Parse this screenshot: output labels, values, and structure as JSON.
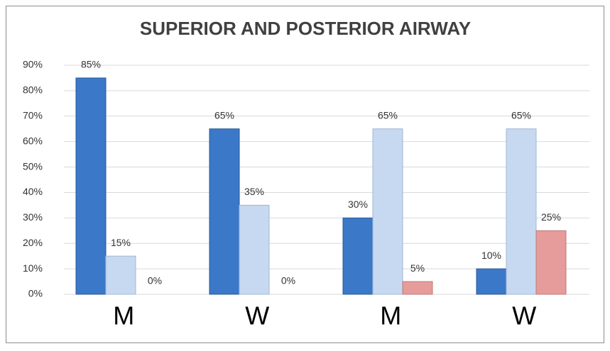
{
  "chart_data": {
    "type": "bar",
    "title": "SUPERIOR AND POSTERIOR AIRWAY",
    "categories": [
      "M",
      "W",
      "M",
      "W"
    ],
    "series": [
      {
        "color": "#3b78c8",
        "values": [
          85,
          65,
          30,
          10
        ],
        "value_labels": [
          "85%",
          "65%",
          "30%",
          "10%"
        ]
      },
      {
        "color": "#c6d9f1",
        "values": [
          15,
          35,
          65,
          65
        ],
        "value_labels": [
          "15%",
          "35%",
          "65%",
          "65%"
        ]
      },
      {
        "color": "#e59c9b",
        "values": [
          0,
          0,
          5,
          25
        ],
        "value_labels": [
          "0%",
          "0%",
          "5%",
          "25%"
        ]
      }
    ],
    "ylim": [
      0,
      90
    ],
    "yticks": [
      {
        "value": 0,
        "label": "0%"
      },
      {
        "value": 10,
        "label": "10%"
      },
      {
        "value": 20,
        "label": "20%"
      },
      {
        "value": 30,
        "label": "30%"
      },
      {
        "value": 40,
        "label": "40%"
      },
      {
        "value": 50,
        "label": "50%"
      },
      {
        "value": 60,
        "label": "60%"
      },
      {
        "value": 70,
        "label": "70%"
      },
      {
        "value": 80,
        "label": "80%"
      },
      {
        "value": 90,
        "label": "90%"
      }
    ],
    "grid": true
  }
}
